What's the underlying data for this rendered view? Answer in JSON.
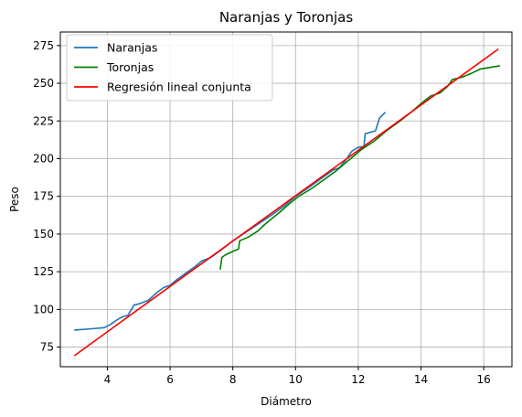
{
  "chart_data": {
    "type": "line",
    "title": "Naranjas y Toronjas",
    "xlabel": "Diámetro",
    "ylabel": "Peso",
    "xlim": [
      2.5,
      16.9
    ],
    "ylim": [
      62,
      284
    ],
    "grid": true,
    "legend_position": "top-left",
    "x_ticks": [
      4,
      6,
      8,
      10,
      12,
      14,
      16
    ],
    "y_ticks": [
      75,
      100,
      125,
      150,
      175,
      200,
      225,
      250,
      275
    ],
    "series": [
      {
        "name": "Naranjas",
        "color": "#1f77b4",
        "points": [
          [
            2.96,
            86.3
          ],
          [
            3.5,
            87.2
          ],
          [
            3.9,
            87.9
          ],
          [
            4.1,
            90.0
          ],
          [
            4.3,
            93.0
          ],
          [
            4.5,
            95.3
          ],
          [
            4.65,
            96.0
          ],
          [
            4.85,
            102.8
          ],
          [
            5.05,
            104.0
          ],
          [
            5.3,
            106.0
          ],
          [
            5.6,
            111.5
          ],
          [
            5.8,
            114.5
          ],
          [
            6.0,
            116.0
          ],
          [
            6.2,
            119.5
          ],
          [
            6.5,
            124.0
          ],
          [
            6.8,
            128.5
          ],
          [
            7.0,
            132.0
          ],
          [
            7.3,
            134.5
          ],
          [
            7.6,
            139.0
          ],
          [
            8.0,
            145.5
          ],
          [
            8.4,
            151.0
          ],
          [
            8.8,
            156.5
          ],
          [
            9.2,
            162.0
          ],
          [
            9.6,
            168.0
          ],
          [
            10.0,
            175.0
          ],
          [
            10.4,
            180.5
          ],
          [
            10.8,
            186.5
          ],
          [
            11.2,
            192.5
          ],
          [
            11.4,
            194.0
          ],
          [
            11.6,
            199.0
          ],
          [
            11.8,
            205.0
          ],
          [
            12.0,
            207.5
          ],
          [
            12.18,
            208.0
          ],
          [
            12.22,
            216.5
          ],
          [
            12.55,
            218.5
          ],
          [
            12.68,
            227.0
          ],
          [
            12.85,
            230.5
          ]
        ]
      },
      {
        "name": "Toronjas",
        "color": "#008000",
        "points": [
          [
            7.6,
            126.8
          ],
          [
            7.65,
            134.5
          ],
          [
            7.75,
            136.0
          ],
          [
            8.0,
            138.5
          ],
          [
            8.18,
            140.0
          ],
          [
            8.22,
            145.5
          ],
          [
            8.5,
            148.0
          ],
          [
            8.8,
            152.0
          ],
          [
            9.0,
            156.0
          ],
          [
            9.2,
            159.5
          ],
          [
            9.5,
            164.5
          ],
          [
            9.8,
            170.0
          ],
          [
            10.1,
            175.0
          ],
          [
            10.5,
            180.0
          ],
          [
            10.9,
            186.0
          ],
          [
            11.3,
            192.0
          ],
          [
            11.7,
            199.0
          ],
          [
            12.1,
            206.0
          ],
          [
            12.5,
            211.5
          ],
          [
            12.9,
            218.5
          ],
          [
            13.3,
            224.5
          ],
          [
            13.7,
            231.0
          ],
          [
            14.0,
            236.5
          ],
          [
            14.3,
            241.5
          ],
          [
            14.6,
            243.5
          ],
          [
            14.85,
            248.0
          ],
          [
            15.0,
            252.5
          ],
          [
            15.3,
            254.0
          ],
          [
            15.6,
            256.5
          ],
          [
            15.9,
            259.5
          ],
          [
            16.2,
            260.5
          ],
          [
            16.5,
            261.5
          ]
        ]
      },
      {
        "name": "Regresión lineal conjunta",
        "color": "#ff0000",
        "points": [
          [
            2.96,
            69.5
          ],
          [
            16.45,
            272.5
          ]
        ]
      }
    ]
  }
}
